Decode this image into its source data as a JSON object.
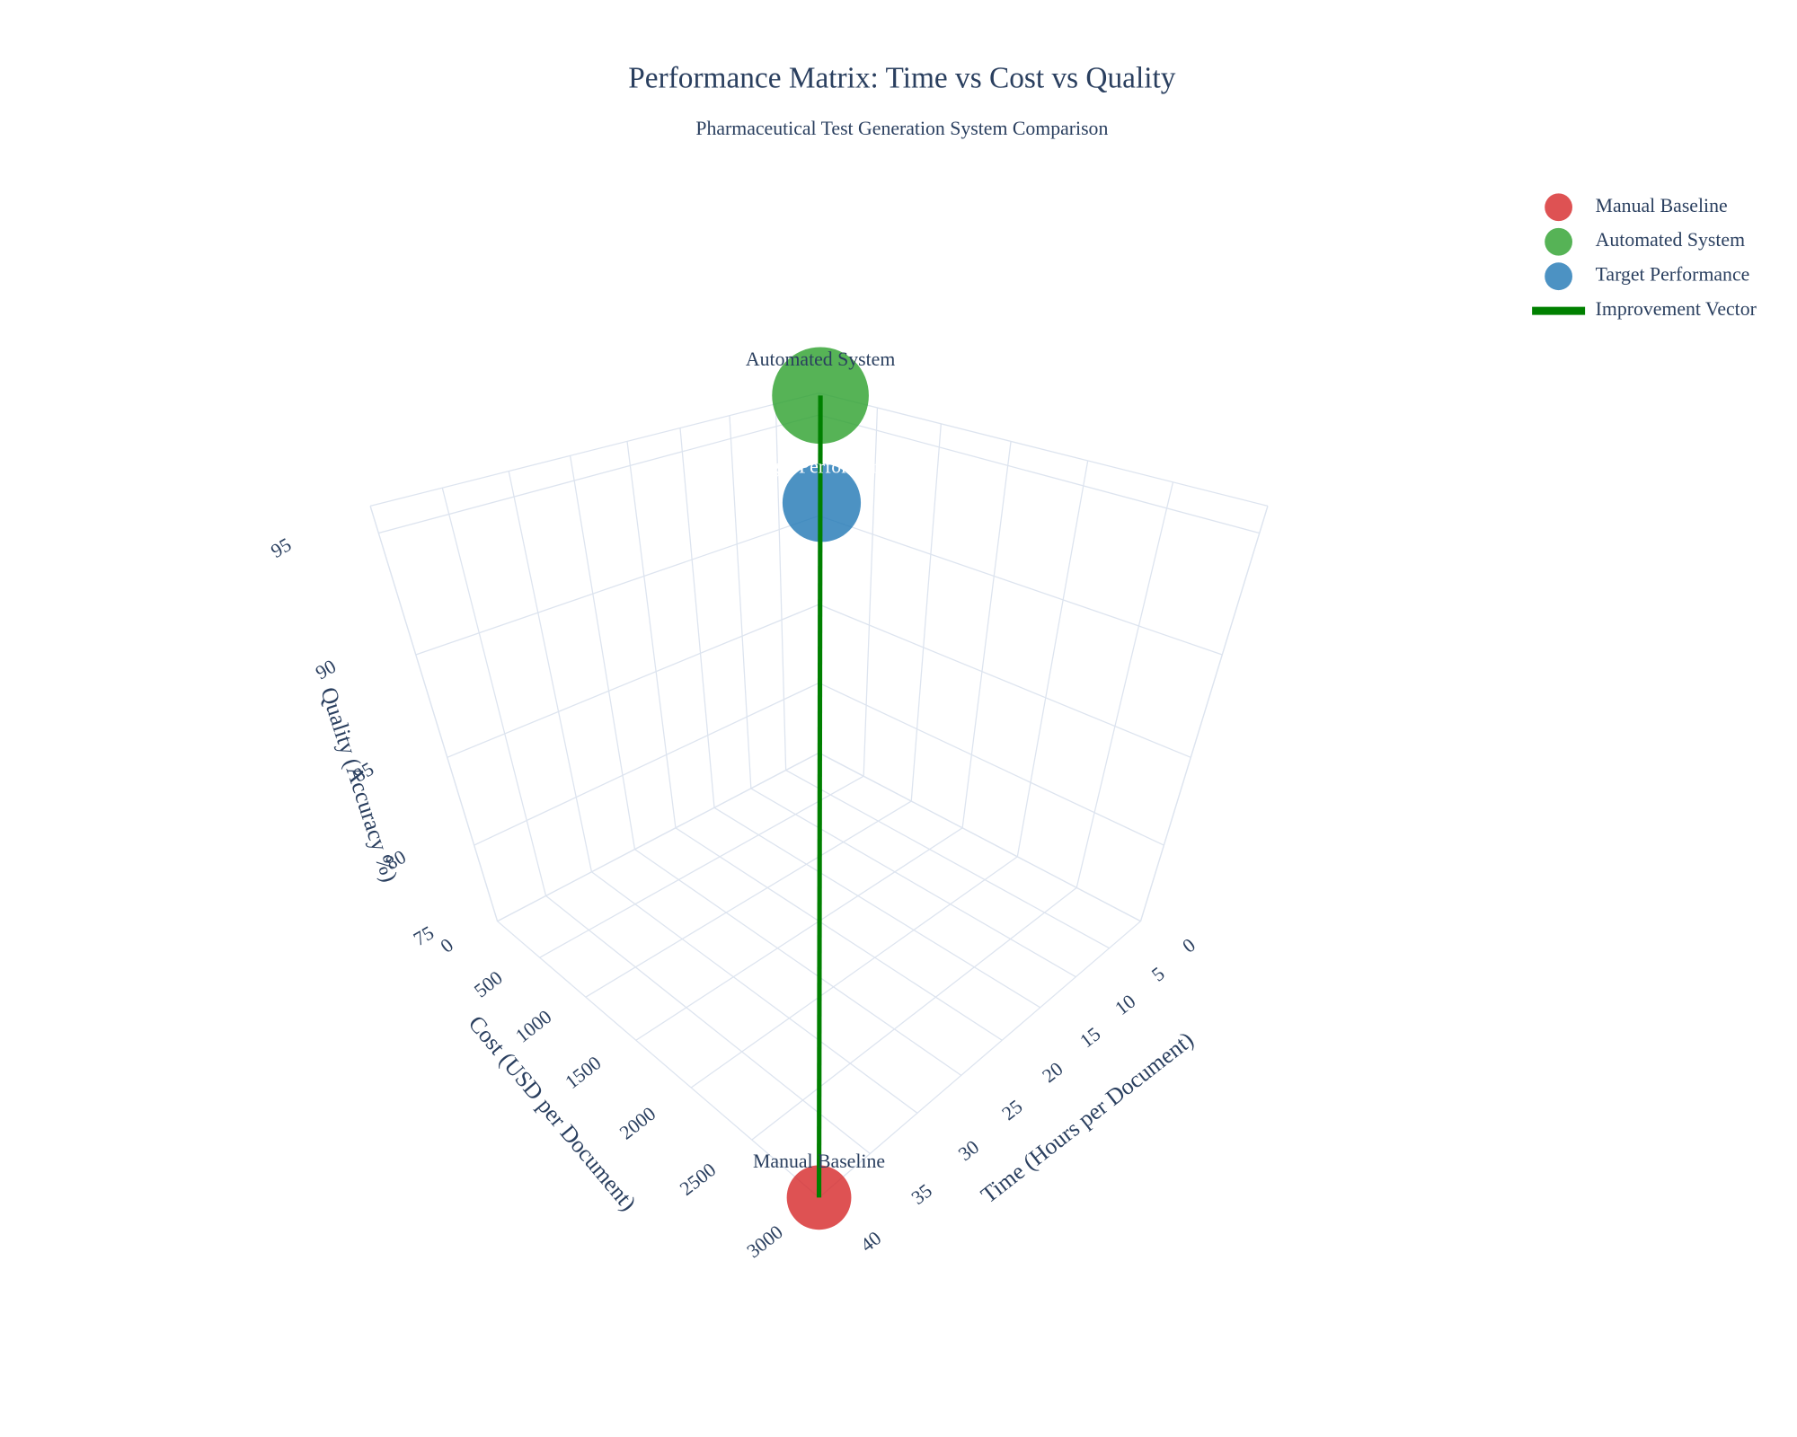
{
  "chart_data": {
    "type": "scatter3d",
    "title": "Performance Matrix: Time vs Cost vs Quality",
    "subtitle": "Pharmaceutical Test Generation System Comparison",
    "x_label": "Time (Hours per Document)",
    "y_label": "Cost (USD per Document)",
    "z_label": "Quality (Accuracy %)",
    "xlim": [
      0,
      40
    ],
    "ylim": [
      0,
      3000
    ],
    "zlim": [
      75,
      96
    ],
    "xticks": [
      0,
      5,
      10,
      15,
      20,
      25,
      30,
      35,
      40
    ],
    "yticks": [
      0,
      500,
      1000,
      1500,
      2000,
      2500,
      3000
    ],
    "zticks": [
      75,
      80,
      85,
      90,
      95
    ],
    "grid": true,
    "legend": "top-right",
    "series": [
      {
        "name": "Manual Baseline",
        "mode": "markers+text",
        "color": "#d62728",
        "size": 56,
        "text_color": "#2a3f5f",
        "x": [
          40
        ],
        "y": [
          3000
        ],
        "z": [
          75
        ]
      },
      {
        "name": "Automated System",
        "mode": "markers+text",
        "color": "#2ca02c",
        "size": 84,
        "text_color": "#2a3f5f",
        "x": [
          0.5
        ],
        "y": [
          50
        ],
        "z": [
          96
        ]
      },
      {
        "name": "Target Performance",
        "mode": "markers+text",
        "color": "#1f77b4",
        "size": 68,
        "text_color": "#ffffff",
        "x": [
          1
        ],
        "y": [
          100
        ],
        "z": [
          91
        ]
      },
      {
        "name": "Improvement Vector",
        "mode": "lines",
        "color": "green",
        "x": [
          40,
          0.5
        ],
        "y": [
          3000,
          50
        ],
        "z": [
          75,
          96
        ]
      }
    ]
  }
}
